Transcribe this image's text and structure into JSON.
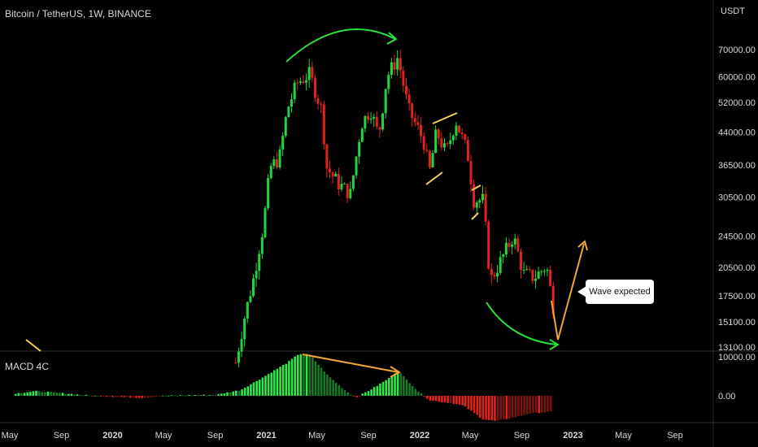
{
  "header": {
    "symbol_title": "Bitcoin / TetherUS, 1W, BINANCE",
    "currency": "USDT",
    "indicator_label": "MACD 4C"
  },
  "annotation": {
    "callout_text": "Wave expected"
  },
  "colors": {
    "background": "#000000",
    "bull": "#22d63a",
    "bear": "#e2231a",
    "annotation_green": "#27e23f",
    "annotation_orange": "#f3a633",
    "annotation_yellow": "#f6d25b",
    "grid": "#1c1c1c",
    "axis_text": "#d8d8d8"
  },
  "chart_data": [
    {
      "type": "candlestick",
      "title": "Bitcoin / TetherUS, 1W, BINANCE",
      "y_axis_unit": "USDT",
      "y_scale": "log",
      "y_ticks": [
        70000,
        60000,
        52000,
        44000,
        36500,
        30500,
        24500,
        20500,
        17500,
        15100,
        13100
      ],
      "y_tick_labels": [
        "70000.00",
        "60000.00",
        "52000.00",
        "44000.00",
        "36500.00",
        "30500.00",
        "24500.00",
        "20500.00",
        "17500.00",
        "15100.00",
        "13100.00"
      ],
      "x_tick_labels": [
        "May",
        "Sep",
        "2020",
        "May",
        "Sep",
        "2021",
        "May",
        "Sep",
        "2022",
        "May",
        "Sep",
        "2023",
        "May",
        "Sep"
      ],
      "x_ticks": [
        "2019-05-01",
        "2019-09-01",
        "2020-01-01",
        "2020-05-01",
        "2020-09-01",
        "2021-01-01",
        "2021-05-01",
        "2021-09-01",
        "2022-01-01",
        "2022-05-01",
        "2022-09-01",
        "2023-01-01",
        "2023-05-01",
        "2023-09-01"
      ],
      "price_path": [
        {
          "date": "2020-10-20",
          "close": 12000
        },
        {
          "date": "2020-11-10",
          "close": 15500
        },
        {
          "date": "2020-12-01",
          "close": 19200
        },
        {
          "date": "2020-12-25",
          "close": 26000
        },
        {
          "date": "2021-01-10",
          "close": 36000
        },
        {
          "date": "2021-02-01",
          "close": 38000
        },
        {
          "date": "2021-02-20",
          "close": 50000
        },
        {
          "date": "2021-03-15",
          "close": 58000
        },
        {
          "date": "2021-04-14",
          "close": 61000
        },
        {
          "date": "2021-05-12",
          "close": 50000
        },
        {
          "date": "2021-05-25",
          "close": 36000
        },
        {
          "date": "2021-06-20",
          "close": 33000
        },
        {
          "date": "2021-07-20",
          "close": 31000
        },
        {
          "date": "2021-08-15",
          "close": 46000
        },
        {
          "date": "2021-09-06",
          "close": 50000
        },
        {
          "date": "2021-09-25",
          "close": 43000
        },
        {
          "date": "2021-10-15",
          "close": 60000
        },
        {
          "date": "2021-11-10",
          "close": 67000
        },
        {
          "date": "2021-12-05",
          "close": 50000
        },
        {
          "date": "2022-01-10",
          "close": 42000
        },
        {
          "date": "2022-01-24",
          "close": 35000
        },
        {
          "date": "2022-02-10",
          "close": 44000
        },
        {
          "date": "2022-03-05",
          "close": 39000
        },
        {
          "date": "2022-03-28",
          "close": 47000
        },
        {
          "date": "2022-04-25",
          "close": 39000
        },
        {
          "date": "2022-05-10",
          "close": 30000
        },
        {
          "date": "2022-06-01",
          "close": 30000
        },
        {
          "date": "2022-06-18",
          "close": 19000
        },
        {
          "date": "2022-07-10",
          "close": 21000
        },
        {
          "date": "2022-08-12",
          "close": 24500
        },
        {
          "date": "2022-09-05",
          "close": 19800
        },
        {
          "date": "2022-10-01",
          "close": 19400
        },
        {
          "date": "2022-10-30",
          "close": 20700
        },
        {
          "date": "2022-11-15",
          "close": 16500
        }
      ],
      "annotations": {
        "projection_low": {
          "date": "2022-12-10",
          "value": 13300
        },
        "projection_high": {
          "date": "2023-01-10",
          "value": 23800
        }
      }
    },
    {
      "type": "bar",
      "title": "MACD 4C",
      "y_ticks": [
        10000,
        0
      ],
      "y_tick_labels": [
        "10000.00",
        "0.00"
      ],
      "histogram_path": [
        {
          "date": "2019-05-15",
          "value": 600
        },
        {
          "date": "2019-07-01",
          "value": 1200
        },
        {
          "date": "2019-09-01",
          "value": 700
        },
        {
          "date": "2019-11-01",
          "value": 100
        },
        {
          "date": "2020-01-15",
          "value": -300
        },
        {
          "date": "2020-03-15",
          "value": -500
        },
        {
          "date": "2020-05-01",
          "value": 0
        },
        {
          "date": "2020-07-01",
          "value": 150
        },
        {
          "date": "2020-09-01",
          "value": 200
        },
        {
          "date": "2020-11-01",
          "value": 1500
        },
        {
          "date": "2020-12-20",
          "value": 4500
        },
        {
          "date": "2021-02-20",
          "value": 8500
        },
        {
          "date": "2021-03-20",
          "value": 10800
        },
        {
          "date": "2021-04-15",
          "value": 10500
        },
        {
          "date": "2021-05-25",
          "value": 5500
        },
        {
          "date": "2021-06-30",
          "value": 2000
        },
        {
          "date": "2021-08-01",
          "value": -500
        },
        {
          "date": "2021-09-10",
          "value": 1800
        },
        {
          "date": "2021-10-20",
          "value": 4500
        },
        {
          "date": "2021-11-10",
          "value": 6500
        },
        {
          "date": "2021-12-25",
          "value": 1500
        },
        {
          "date": "2022-01-25",
          "value": -1200
        },
        {
          "date": "2022-03-15",
          "value": -1800
        },
        {
          "date": "2022-04-15",
          "value": -2500
        },
        {
          "date": "2022-06-01",
          "value": -6000
        },
        {
          "date": "2022-07-01",
          "value": -6500
        },
        {
          "date": "2022-08-15",
          "value": -5500
        },
        {
          "date": "2022-09-20",
          "value": -4500
        },
        {
          "date": "2022-11-15",
          "value": -4000
        }
      ]
    }
  ]
}
